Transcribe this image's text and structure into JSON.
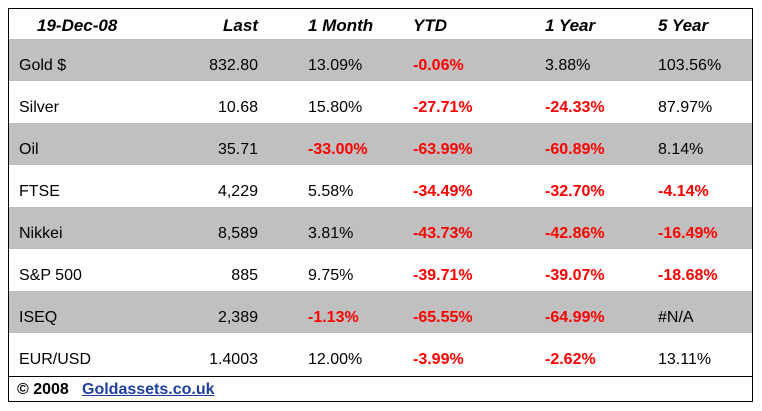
{
  "header": [
    "19-Dec-08",
    "Last",
    "1 Month",
    "YTD",
    "1 Year",
    "5 Year"
  ],
  "rows": [
    [
      "Gold $",
      "832.80",
      "13.09%",
      "-0.06%",
      "3.88%",
      "103.56%"
    ],
    [
      "Silver",
      "10.68",
      "15.80%",
      "-27.71%",
      "-24.33%",
      "87.97%"
    ],
    [
      "Oil",
      "35.71",
      "-33.00%",
      "-63.99%",
      "-60.89%",
      "8.14%"
    ],
    [
      "FTSE",
      "4,229",
      "5.58%",
      "-34.49%",
      "-32.70%",
      "-4.14%"
    ],
    [
      "Nikkei",
      "8,589",
      "3.81%",
      "-43.73%",
      "-42.86%",
      "-16.49%"
    ],
    [
      "S&P 500",
      "885",
      "9.75%",
      "-39.71%",
      "-39.07%",
      "-18.68%"
    ],
    [
      "ISEQ",
      "2,389",
      "-1.13%",
      "-65.55%",
      "-64.99%",
      "#N/A"
    ],
    [
      "EUR/USD",
      "1.4003",
      "12.00%",
      "-3.99%",
      "-2.62%",
      "13.11%"
    ]
  ],
  "footer": {
    "copyright": "© 2008",
    "link": "Goldassets.co.uk"
  }
}
